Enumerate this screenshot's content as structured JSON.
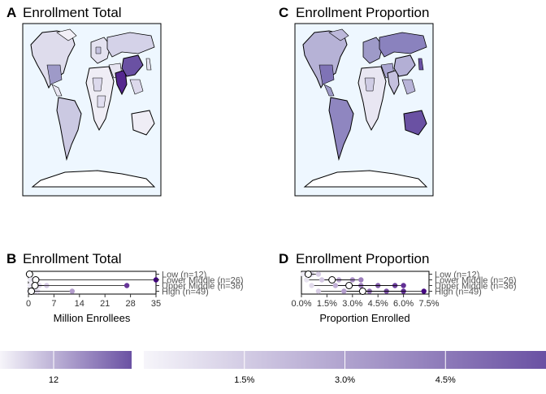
{
  "panels": {
    "a": {
      "letter": "A",
      "title": "Enrollment Total"
    },
    "c": {
      "letter": "C",
      "title": "Enrollment Proportion"
    },
    "b": {
      "letter": "B",
      "title": "Enrollment Total",
      "xlabel": "Million Enrollees"
    },
    "d": {
      "letter": "D",
      "title": "Enrollment Proportion",
      "xlabel": "Proportion Enrolled"
    }
  },
  "colors": {
    "low": "#efedf5",
    "mid": "#9e9ac8",
    "high": "#54278f",
    "ocean": "#eef7ff",
    "line": "#000000"
  },
  "chart_data": [
    {
      "type": "scatter",
      "panel": "B",
      "title": "Enrollment Total",
      "xlabel": "Million Enrollees",
      "ylabel": "",
      "xlim": [
        0,
        35
      ],
      "xticks": [
        0,
        7,
        14,
        21,
        28,
        35
      ],
      "xtick_labels": [
        "0",
        "7",
        "14",
        "21",
        "28",
        "35"
      ],
      "categories": [
        "Low (n=12)",
        "Lower Middle (n=26)",
        "Upper Middle (n=36)",
        "High (n=49)"
      ],
      "series": [
        {
          "category": "Low (n=12)",
          "mean": 0.3,
          "points": [
            0.1,
            0.2,
            0.4
          ]
        },
        {
          "category": "Lower Middle (n=26)",
          "mean": 2.0,
          "points": [
            0.5,
            1.2,
            2.5,
            35.0
          ]
        },
        {
          "category": "Upper Middle (n=36)",
          "mean": 1.8,
          "points": [
            0.4,
            1.0,
            3.0,
            5.0,
            27.0
          ]
        },
        {
          "category": "High (n=49)",
          "mean": 0.8,
          "points": [
            0.2,
            0.6,
            1.5,
            2.5,
            12.0
          ]
        }
      ]
    },
    {
      "type": "scatter",
      "panel": "D",
      "title": "Enrollment Proportion",
      "xlabel": "Proportion Enrolled",
      "ylabel": "",
      "xlim": [
        0.0,
        7.5
      ],
      "xticks": [
        0.0,
        1.5,
        3.0,
        4.5,
        6.0,
        7.5
      ],
      "xtick_labels": [
        "0.0%",
        "1.5%",
        "3.0%",
        "4.5%",
        "6.0%",
        "7.5%"
      ],
      "categories": [
        "Low (n=12)",
        "Lower Middle (n=26)",
        "Upper Middle (n=36)",
        "High (n=49)"
      ],
      "series": [
        {
          "category": "Low (n=12)",
          "mean": 0.4,
          "points": [
            0.1,
            0.3,
            0.6,
            1.0
          ]
        },
        {
          "category": "Lower Middle (n=26)",
          "mean": 1.8,
          "points": [
            0.3,
            1.2,
            2.2,
            3.0,
            3.5
          ]
        },
        {
          "category": "Upper Middle (n=36)",
          "mean": 2.8,
          "points": [
            0.6,
            2.0,
            3.5,
            4.5,
            5.5,
            6.0
          ]
        },
        {
          "category": "High (n=49)",
          "mean": 3.6,
          "points": [
            1.0,
            2.5,
            4.0,
            5.0,
            6.0,
            7.2
          ]
        }
      ]
    },
    {
      "type": "heatmap",
      "panel": "legend",
      "name": "colorbar-total",
      "tick_labels": [
        "12"
      ],
      "ticks": [
        12
      ],
      "range": [
        0,
        35
      ]
    },
    {
      "type": "heatmap",
      "panel": "legend",
      "name": "colorbar-proportion",
      "tick_labels": [
        "1.5%",
        "3.0%",
        "4.5%"
      ],
      "ticks": [
        1.5,
        3.0,
        4.5
      ],
      "range": [
        0,
        6.0
      ]
    }
  ]
}
